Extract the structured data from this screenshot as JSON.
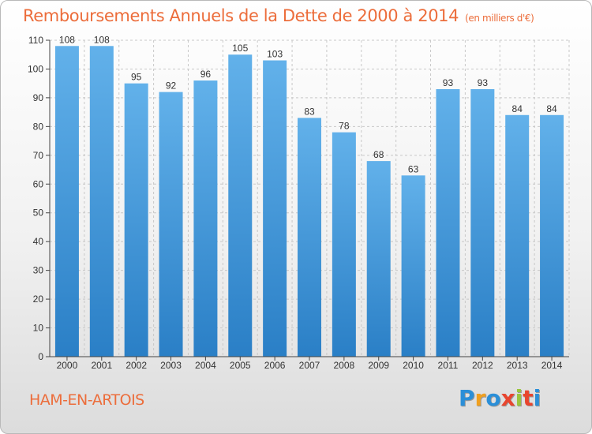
{
  "title": "Remboursements Annuels de la Dette de 2000 à 2014",
  "unit": "(en milliers d'€)",
  "place": "HAM-EN-ARTOIS",
  "logo": {
    "letters": [
      "P",
      "r",
      "o",
      "x",
      "i",
      "t",
      "i"
    ],
    "colors": [
      "#2b8fd8",
      "#f0a020",
      "#2b8fd8",
      "#e8452e",
      "#9bc53d",
      "#e8452e",
      "#2b8fd8"
    ]
  },
  "colors": {
    "bar_top": "#62b1ea",
    "bar_bottom": "#2a7fc6",
    "title": "#ec6d3b",
    "grid": "#c8c8c8"
  },
  "chart_data": {
    "type": "bar",
    "categories": [
      "2000",
      "2001",
      "2002",
      "2003",
      "2004",
      "2005",
      "2006",
      "2007",
      "2008",
      "2009",
      "2010",
      "2011",
      "2012",
      "2013",
      "2014"
    ],
    "values": [
      108,
      108,
      95,
      92,
      96,
      105,
      103,
      83,
      78,
      68,
      63,
      93,
      93,
      84,
      84
    ],
    "yticks": [
      0,
      10,
      20,
      30,
      40,
      50,
      60,
      70,
      80,
      90,
      100,
      110
    ],
    "ylim": [
      0,
      110
    ],
    "grid": true,
    "title": "Remboursements Annuels de la Dette de 2000 à 2014",
    "xlabel": "",
    "ylabel": ""
  }
}
